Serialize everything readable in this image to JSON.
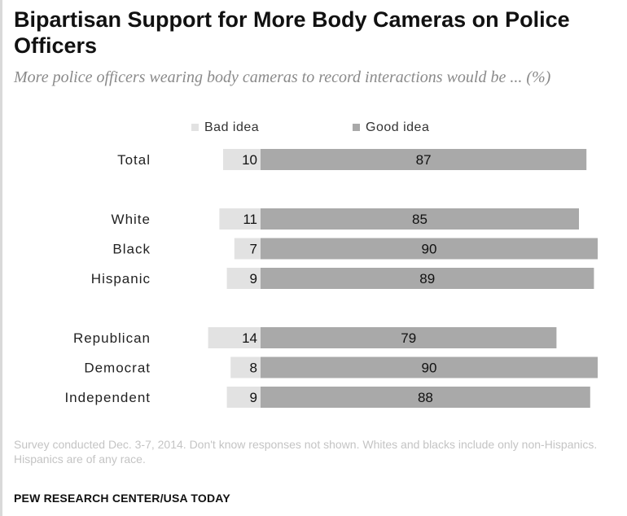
{
  "colors": {
    "bad_idea": "#e2e2e2",
    "good_idea": "#a9a9a9"
  },
  "header": {
    "title": "Bipartisan Support for More Body Cameras on Police Officers",
    "subtitle": "More police officers wearing body cameras to record interactions would be ... (%)"
  },
  "footer": {
    "note": "Survey conducted Dec. 3-7, 2014. Don't know responses not shown. Whites and blacks include only non-Hispanics. Hispanics are of any race.",
    "source": "PEW RESEARCH CENTER/USA TODAY"
  },
  "chart_data": {
    "type": "bar",
    "orientation": "horizontal",
    "stacked": "diverging",
    "categories": [
      "Total",
      "White",
      "Black",
      "Hispanic",
      "Republican",
      "Democrat",
      "Independent"
    ],
    "groups": [
      [
        "Total"
      ],
      [
        "White",
        "Black",
        "Hispanic"
      ],
      [
        "Republican",
        "Democrat",
        "Independent"
      ]
    ],
    "series": [
      {
        "name": "Bad idea",
        "values": [
          10,
          11,
          7,
          9,
          14,
          8,
          9
        ]
      },
      {
        "name": "Good idea",
        "values": [
          87,
          85,
          90,
          89,
          79,
          90,
          88
        ]
      }
    ],
    "legend_position": "top",
    "grid": false,
    "data_labels": true
  }
}
